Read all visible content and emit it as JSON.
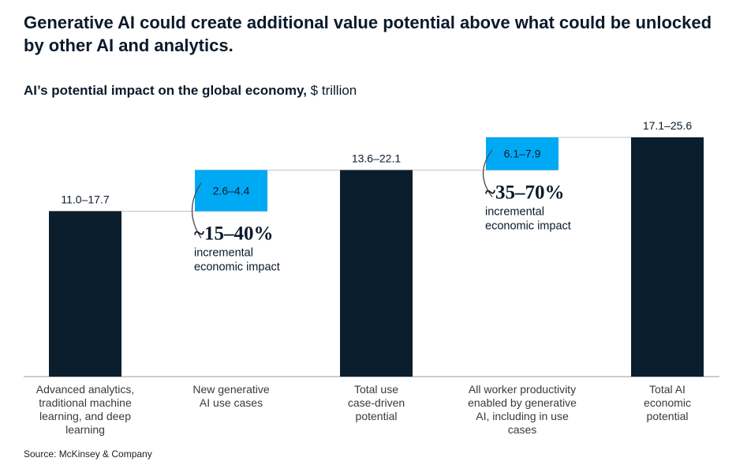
{
  "chart_data": {
    "type": "waterfall",
    "title": "Generative AI could create additional value potential above what could be unlocked by other AI and analytics.",
    "subtitle_bold": "AI’s potential impact on the global economy,",
    "subtitle_unit": "$ trillion",
    "source": "Source: McKinsey & Company",
    "ylim": [
      0,
      25.6
    ],
    "bars": [
      {
        "id": "advanced",
        "kind": "total",
        "label_lines": [
          "Advanced analytics,",
          "traditional machine",
          "learning, and deep",
          "learning"
        ],
        "low": 11.0,
        "high": 17.7,
        "value_label": "11.0–17.7",
        "color": "#0b1e2d"
      },
      {
        "id": "gen-ai",
        "kind": "increment",
        "label_lines": [
          "New generative",
          "AI use cases"
        ],
        "low": 2.6,
        "high": 4.4,
        "value_label": "2.6–4.4",
        "color": "#00a9f4",
        "annotation": {
          "pct": "~15–40%",
          "lines": [
            "incremental",
            "economic impact"
          ]
        }
      },
      {
        "id": "total-use",
        "kind": "total",
        "label_lines": [
          "Total use",
          "case-driven",
          "potential"
        ],
        "low": 13.6,
        "high": 22.1,
        "value_label": "13.6–22.1",
        "color": "#0b1e2d"
      },
      {
        "id": "worker",
        "kind": "increment",
        "label_lines": [
          "All worker productivity",
          "enabled by generative",
          "AI, including in use",
          "cases"
        ],
        "low": 6.1,
        "high": 7.9,
        "value_label": "6.1–7.9",
        "color": "#00a9f4",
        "annotation": {
          "pct": "~35–70%",
          "lines": [
            "incremental",
            "economic impact"
          ]
        }
      },
      {
        "id": "total-ai",
        "kind": "total",
        "label_lines": [
          "Total AI",
          "economic",
          "potential"
        ],
        "low": 17.1,
        "high": 25.6,
        "value_label": "17.1–25.6",
        "color": "#0b1e2d"
      }
    ]
  }
}
